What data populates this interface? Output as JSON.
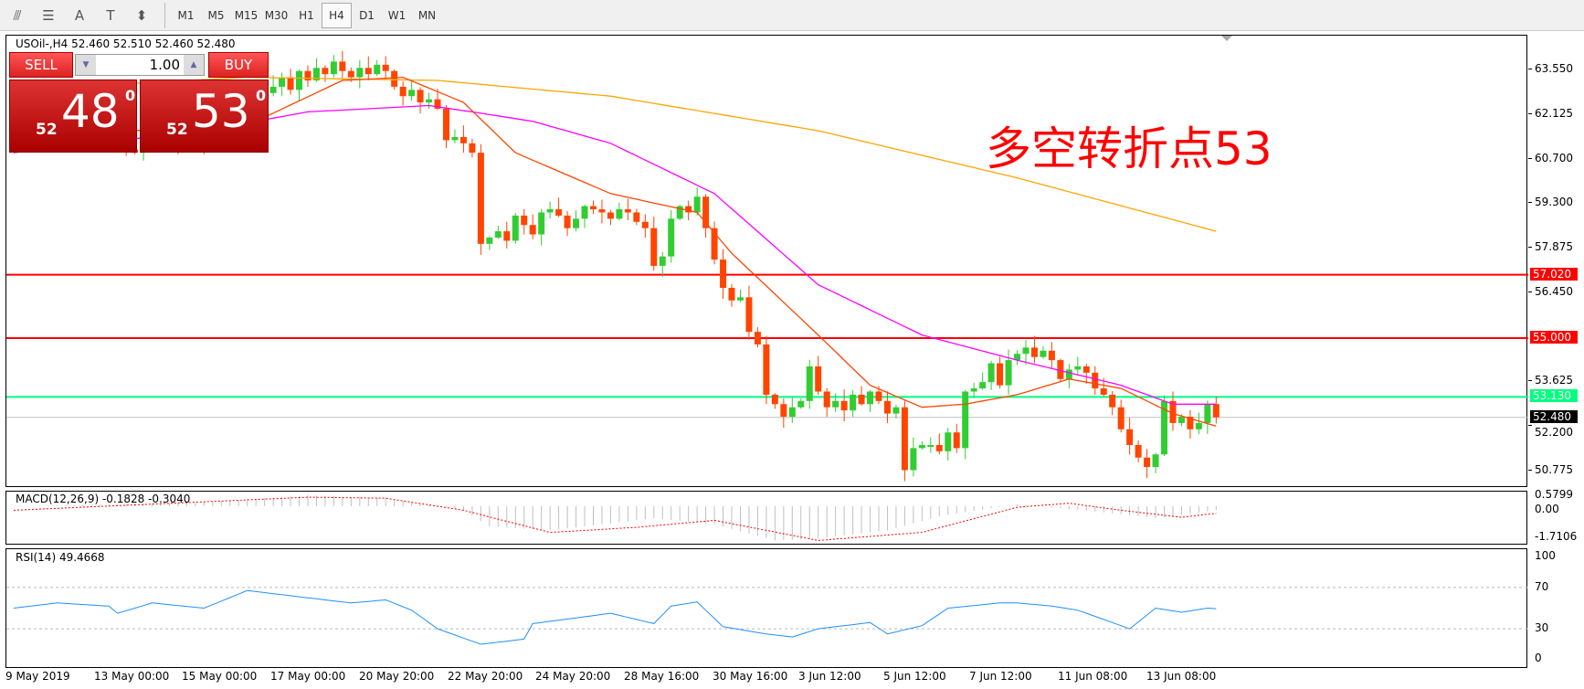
{
  "toolbar": {
    "icons": [
      "line-studies-icon",
      "fibonacci-icon",
      "text-icon",
      "text-label-icon",
      "arrows-icon"
    ],
    "icon_glyphs": [
      "⫻",
      "☰",
      "A",
      "T",
      "⬍"
    ],
    "timeframes": [
      "M1",
      "M5",
      "M15",
      "M30",
      "H1",
      "H4",
      "D1",
      "W1",
      "MN"
    ],
    "active": "H4"
  },
  "chart": {
    "legend": "USOil-,H4  52.460 52.510 52.460 52.480",
    "annotation": "多空转折点53",
    "colors": {
      "bull": "#32cd32",
      "bear": "#ff4500",
      "ma_fast": "#ff4500",
      "ma_mid": "#ff00ff",
      "ma_slow": "#ffa500",
      "resistance": "#ff0000",
      "pivot": "#00ff7f",
      "bid": "#c0c0c0"
    }
  },
  "trade": {
    "sell_label": "SELL",
    "buy_label": "BUY",
    "volume": "1.00",
    "sell_small": "52",
    "sell_big": "48",
    "sell_sup": "0",
    "buy_small": "52",
    "buy_big": "53",
    "buy_sup": "0"
  },
  "price_axis": {
    "ticks": [
      "63.550",
      "62.125",
      "60.700",
      "59.300",
      "57.875",
      "56.450",
      "53.625",
      "52.200",
      "50.775"
    ],
    "tick_values": [
      63.55,
      62.125,
      60.7,
      59.3,
      57.875,
      56.45,
      53.625,
      52.2,
      50.775
    ]
  },
  "levels": [
    {
      "value": 57.02,
      "label": "57.020",
      "color": "#ff0000"
    },
    {
      "value": 55.0,
      "label": "55.000",
      "color": "#ff0000"
    },
    {
      "value": 53.13,
      "label": "53.130",
      "color": "#00ff7f"
    },
    {
      "value": 52.48,
      "label": "52.480",
      "color": "#000000"
    }
  ],
  "macd": {
    "legend": "MACD(12,26,9) -0.1828 -0.3040",
    "axis": [
      "0.5799",
      "0.00",
      "-1.7106"
    ],
    "range": [
      -1.7106,
      0.5799
    ],
    "hist": [
      [
        0,
        0
      ],
      [
        22,
        0.2
      ],
      [
        34,
        0.55
      ],
      [
        43,
        0.4
      ],
      [
        52,
        -0.2
      ],
      [
        55,
        -1.0
      ],
      [
        62,
        -1.2
      ],
      [
        74,
        -0.6
      ],
      [
        81,
        -0.9
      ],
      [
        88,
        -1.7
      ],
      [
        93,
        -1.6
      ],
      [
        101,
        -1.2
      ],
      [
        107,
        -0.5
      ],
      [
        116,
        0.1
      ],
      [
        126,
        -0.3
      ],
      [
        132,
        -0.6
      ],
      [
        139,
        -0.2
      ]
    ],
    "signal": [
      [
        0,
        -0.2
      ],
      [
        34,
        0.45
      ],
      [
        43,
        0.4
      ],
      [
        52,
        -0.2
      ],
      [
        62,
        -1.3
      ],
      [
        72,
        -1.05
      ],
      [
        81,
        -0.7
      ],
      [
        93,
        -1.7
      ],
      [
        105,
        -1.3
      ],
      [
        116,
        -0.05
      ],
      [
        122,
        0.15
      ],
      [
        128,
        -0.2
      ],
      [
        135,
        -0.55
      ],
      [
        139,
        -0.35
      ]
    ]
  },
  "rsi": {
    "legend": "RSI(14) 49.4668",
    "axis": [
      "100",
      "70",
      "30",
      "0"
    ],
    "levels": [
      70,
      30
    ],
    "values": [
      [
        0,
        50
      ],
      [
        5,
        55
      ],
      [
        11,
        52
      ],
      [
        12,
        45
      ],
      [
        16,
        55
      ],
      [
        22,
        50
      ],
      [
        27,
        67
      ],
      [
        34,
        60
      ],
      [
        39,
        55
      ],
      [
        43,
        58
      ],
      [
        46,
        48
      ],
      [
        49,
        30
      ],
      [
        54,
        15
      ],
      [
        59,
        20
      ],
      [
        60,
        35
      ],
      [
        69,
        45
      ],
      [
        74,
        35
      ],
      [
        76,
        52
      ],
      [
        79,
        56
      ],
      [
        82,
        32
      ],
      [
        87,
        25
      ],
      [
        90,
        22
      ],
      [
        93,
        30
      ],
      [
        99,
        36
      ],
      [
        101,
        25
      ],
      [
        105,
        33
      ],
      [
        108,
        50
      ],
      [
        114,
        55
      ],
      [
        116,
        55
      ],
      [
        120,
        52
      ],
      [
        123,
        48
      ],
      [
        128,
        33
      ],
      [
        129,
        30
      ],
      [
        132,
        50
      ],
      [
        135,
        46
      ],
      [
        138,
        50
      ],
      [
        139,
        49.5
      ]
    ]
  },
  "dates": [
    "9 May 2019",
    "13 May 00:00",
    "15 May 00:00",
    "17 May 00:00",
    "20 May 20:00",
    "22 May 20:00",
    "24 May 20:00",
    "28 May 16:00",
    "30 May 16:00",
    "3 Jun 12:00",
    "5 Jun 12:00",
    "7 Jun 12:00",
    "11 Jun 08:00",
    "13 Jun 08:00"
  ],
  "chart_data": {
    "type": "candlestick",
    "symbol": "USOil-",
    "timeframe": "H4",
    "ylim": [
      49.9,
      64.6
    ],
    "closes": [
      61.8,
      61.5,
      61.9,
      61.4,
      61.7,
      61.6,
      62.0,
      61.7,
      61.5,
      61.2,
      61.6,
      61.8,
      61.4,
      61.0,
      60.9,
      61.3,
      61.6,
      61.9,
      61.5,
      61.2,
      61.6,
      61.4,
      61.1,
      61.3,
      61.8,
      62.0,
      61.7,
      62.2,
      62.5,
      62.8,
      63.0,
      63.3,
      62.9,
      63.5,
      63.2,
      63.6,
      63.4,
      63.8,
      63.5,
      63.3,
      63.6,
      63.4,
      63.7,
      63.5,
      63.0,
      62.7,
      62.9,
      62.5,
      62.6,
      62.3,
      61.3,
      61.4,
      61.2,
      60.9,
      58.0,
      58.2,
      58.4,
      58.1,
      58.9,
      58.6,
      58.3,
      59.0,
      59.1,
      58.9,
      58.5,
      58.8,
      59.2,
      59.1,
      59.0,
      58.8,
      59.1,
      59.0,
      58.7,
      58.5,
      57.3,
      57.6,
      58.8,
      59.2,
      59.0,
      59.5,
      58.5,
      57.5,
      56.6,
      56.2,
      56.3,
      55.2,
      54.8,
      53.2,
      52.9,
      52.5,
      52.8,
      53.0,
      54.1,
      53.3,
      52.8,
      53.0,
      52.7,
      53.2,
      52.9,
      53.3,
      53.0,
      52.6,
      52.8,
      50.8,
      51.5,
      51.6,
      51.6,
      51.4,
      52.0,
      51.5,
      53.3,
      53.4,
      53.6,
      54.2,
      53.5,
      54.3,
      54.5,
      54.7,
      54.4,
      54.6,
      54.3,
      53.7,
      54.0,
      54.1,
      53.9,
      53.4,
      53.2,
      52.8,
      52.1,
      51.6,
      51.2,
      50.9,
      51.3,
      53.0,
      52.3,
      52.5,
      52.1,
      52.3,
      52.9,
      52.48
    ],
    "ma_fast": [
      [
        0,
        61.7
      ],
      [
        16,
        61.6
      ],
      [
        28,
        61.9
      ],
      [
        38,
        63.2
      ],
      [
        45,
        63.3
      ],
      [
        52,
        62.5
      ],
      [
        58,
        60.9
      ],
      [
        69,
        59.6
      ],
      [
        79,
        59.0
      ],
      [
        83,
        57.7
      ],
      [
        93,
        55.1
      ],
      [
        99,
        53.5
      ],
      [
        105,
        52.8
      ],
      [
        110,
        52.9
      ],
      [
        116,
        53.2
      ],
      [
        122,
        53.7
      ],
      [
        128,
        53.4
      ],
      [
        134,
        52.6
      ],
      [
        139,
        52.2
      ]
    ],
    "ma_mid": [
      [
        0,
        60.9
      ],
      [
        22,
        61.6
      ],
      [
        34,
        62.2
      ],
      [
        48,
        62.4
      ],
      [
        53,
        62.2
      ],
      [
        60,
        61.9
      ],
      [
        69,
        61.2
      ],
      [
        81,
        59.6
      ],
      [
        93,
        56.7
      ],
      [
        105,
        55.1
      ],
      [
        116,
        54.3
      ],
      [
        128,
        53.5
      ],
      [
        134,
        52.9
      ],
      [
        139,
        52.9
      ]
    ],
    "ma_slow": [
      [
        0,
        62.9
      ],
      [
        27,
        63.3
      ],
      [
        49,
        63.2
      ],
      [
        69,
        62.7
      ],
      [
        93,
        61.6
      ],
      [
        116,
        60.1
      ],
      [
        139,
        58.4
      ]
    ]
  }
}
